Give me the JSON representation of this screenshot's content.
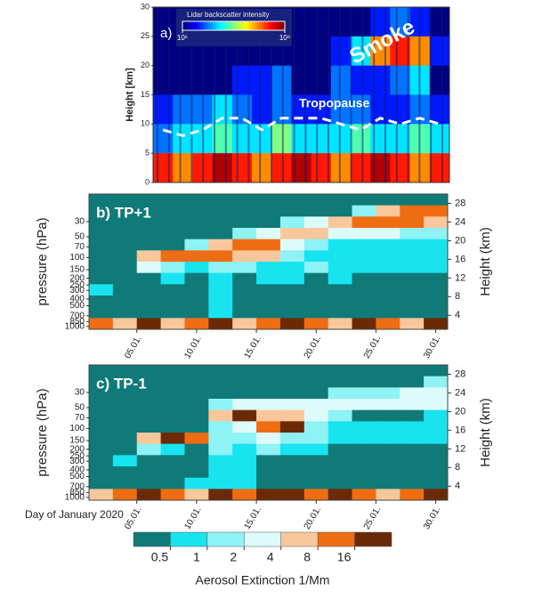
{
  "chart_data": [
    {
      "type": "heatmap",
      "title": "a)",
      "ylabel": "Height [km]",
      "ylim": [
        0,
        30
      ],
      "yticks": [
        0,
        5,
        10,
        15,
        20,
        25,
        30
      ],
      "colorbar_title": "Lidar backscatter intensity",
      "clim_ticks": [
        {
          "value": 1000000.0,
          "label": "10⁶"
        },
        {
          "value": 100000000.0,
          "label": "10⁸"
        }
      ],
      "log_scale": true,
      "annotation": "Smoke",
      "series": [
        {
          "name": "Tropopause",
          "color": "#ffffff",
          "values": [
            9,
            8,
            9,
            11,
            11,
            9,
            11,
            11,
            11,
            10,
            9,
            11,
            10,
            11,
            10
          ]
        }
      ],
      "z": [
        [
          1000000.0,
          1000000.0,
          1000000.0,
          1000000.0,
          1000000.0,
          1000000.0,
          1000000.0,
          1000000.0,
          1000000.0,
          1000000.0,
          1000000.0,
          2000000.0,
          3000000.0,
          2000000.0,
          1000000.0
        ],
        [
          1000000.0,
          1000000.0,
          1000000.0,
          1000000.0,
          1000000.0,
          1000000.0,
          1000000.0,
          1000000.0,
          1000000.0,
          2000000.0,
          5000000.0,
          30000000.0,
          50000000.0,
          30000000.0,
          2000000.0
        ],
        [
          1000000.0,
          1000000.0,
          1000000.0,
          1000000.0,
          2000000.0,
          2000000.0,
          3000000.0,
          1000000.0,
          1000000.0,
          3000000.0,
          2000000.0,
          2000000.0,
          3000000.0,
          5000000.0,
          1000000.0
        ],
        [
          2000000.0,
          3000000.0,
          3000000.0,
          5000000.0,
          3000000.0,
          2000000.0,
          3000000.0,
          2000000.0,
          2000000.0,
          3000000.0,
          3000000.0,
          2000000.0,
          2000000.0,
          3000000.0,
          2000000.0
        ],
        [
          3000000.0,
          5000000.0,
          5000000.0,
          8000000.0,
          5000000.0,
          5000000.0,
          10000000.0,
          5000000.0,
          5000000.0,
          5000000.0,
          8000000.0,
          5000000.0,
          5000000.0,
          8000000.0,
          5000000.0
        ],
        [
          50000000.0,
          30000000.0,
          50000000.0,
          80000000.0,
          50000000.0,
          30000000.0,
          50000000.0,
          80000000.0,
          50000000.0,
          30000000.0,
          50000000.0,
          80000000.0,
          50000000.0,
          30000000.0,
          50000000.0
        ]
      ]
    },
    {
      "type": "heatmap",
      "title": "b) TP+1",
      "ylabel": "pressure (hPa)",
      "y2label": "Height (km)",
      "ylim": [
        1100,
        12
      ],
      "log_scale": true,
      "yticks": [
        30,
        50,
        70,
        100,
        150,
        200,
        250,
        300,
        400,
        500,
        700,
        850,
        1000
      ],
      "y2lim": [
        1,
        30
      ],
      "y2ticks": [
        4,
        8,
        12,
        16,
        20,
        24,
        28
      ],
      "xlim": [
        1,
        31
      ],
      "xticks": [
        {
          "value": 5,
          "label": "05.01."
        },
        {
          "value": 10,
          "label": "10.01."
        },
        {
          "value": 15,
          "label": "15.01."
        },
        {
          "value": 20,
          "label": "20.01."
        },
        {
          "value": 25,
          "label": "25.01."
        },
        {
          "value": 30,
          "label": "30.01."
        }
      ],
      "z": [
        [
          0.3,
          0.3,
          0.3,
          0.3,
          0.3,
          0.3,
          0.3,
          0.3,
          0.3,
          0.3,
          0.3,
          0.3,
          0.3,
          0.3,
          0.3
        ],
        [
          0.3,
          0.3,
          0.3,
          0.3,
          0.3,
          0.3,
          0.3,
          0.3,
          0.3,
          0.3,
          0.3,
          1.5,
          6,
          12,
          12
        ],
        [
          0.3,
          0.3,
          0.3,
          0.3,
          0.3,
          0.3,
          0.3,
          0.3,
          1.5,
          3,
          6,
          12,
          12,
          12,
          6
        ],
        [
          0.3,
          0.3,
          0.3,
          0.3,
          0.3,
          0.3,
          1.5,
          3,
          6,
          6,
          3,
          3,
          3,
          1.5,
          1.5
        ],
        [
          0.3,
          0.3,
          0.3,
          0.3,
          1.5,
          6,
          12,
          12,
          3,
          1.5,
          0.7,
          0.7,
          0.7,
          0.7,
          0.7
        ],
        [
          0.3,
          0.3,
          6,
          12,
          12,
          12,
          6,
          6,
          1.5,
          0.7,
          0.7,
          0.7,
          0.7,
          0.7,
          0.7
        ],
        [
          0.3,
          0.3,
          3,
          1.5,
          0.7,
          1.5,
          1.5,
          0.7,
          0.7,
          1.5,
          0.7,
          0.7,
          0.7,
          0.7,
          0.7
        ],
        [
          0.3,
          0.3,
          0.3,
          0.7,
          0.3,
          0.7,
          0.3,
          0.7,
          0.7,
          0.3,
          0.7,
          0.3,
          0.3,
          0.3,
          0.3
        ],
        [
          0.7,
          0.3,
          0.3,
          0.3,
          0.3,
          0.7,
          0.3,
          0.3,
          0.3,
          0.3,
          0.3,
          0.3,
          0.3,
          0.3,
          0.3
        ],
        [
          0.3,
          0.3,
          0.3,
          0.3,
          0.3,
          0.7,
          0.3,
          0.3,
          0.3,
          0.3,
          0.3,
          0.3,
          0.3,
          0.3,
          0.3
        ],
        [
          0.3,
          0.3,
          0.3,
          0.3,
          0.3,
          0.7,
          0.3,
          0.3,
          0.3,
          0.3,
          0.3,
          0.3,
          0.3,
          0.3,
          0.3
        ],
        [
          12,
          6,
          20,
          6,
          12,
          20,
          6,
          12,
          20,
          12,
          6,
          20,
          12,
          6,
          20
        ]
      ]
    },
    {
      "type": "heatmap",
      "title": "c) TP-1",
      "ylabel": "pressure (hPa)",
      "y2label": "Height (km)",
      "xlabel": "Day of January 2020",
      "ylim": [
        1100,
        12
      ],
      "log_scale": true,
      "yticks": [
        30,
        50,
        70,
        100,
        150,
        200,
        250,
        300,
        400,
        500,
        700,
        850,
        1000
      ],
      "y2lim": [
        1,
        30
      ],
      "y2ticks": [
        4,
        8,
        12,
        16,
        20,
        24,
        28
      ],
      "xlim": [
        1,
        31
      ],
      "xticks": [
        {
          "value": 5,
          "label": "05.01."
        },
        {
          "value": 10,
          "label": "10.01."
        },
        {
          "value": 15,
          "label": "15.01."
        },
        {
          "value": 20,
          "label": "20.01."
        },
        {
          "value": 25,
          "label": "25.01."
        },
        {
          "value": 30,
          "label": "30.01."
        }
      ],
      "z": [
        [
          0.3,
          0.3,
          0.3,
          0.3,
          0.3,
          0.3,
          0.3,
          0.3,
          0.3,
          0.3,
          0.3,
          0.3,
          0.3,
          0.3,
          0.3
        ],
        [
          0.3,
          0.3,
          0.3,
          0.3,
          0.3,
          0.3,
          0.3,
          0.3,
          0.3,
          0.3,
          0.3,
          0.3,
          0.3,
          0.3,
          1.5
        ],
        [
          0.3,
          0.3,
          0.3,
          0.3,
          0.3,
          0.3,
          0.3,
          0.3,
          0.3,
          0.3,
          1.5,
          1.5,
          1.5,
          3,
          3
        ],
        [
          0.3,
          0.3,
          0.3,
          0.3,
          0.3,
          1.5,
          3,
          3,
          3,
          3,
          3,
          3,
          3,
          3,
          3
        ],
        [
          0.3,
          0.3,
          0.3,
          0.3,
          0.3,
          6,
          20,
          6,
          6,
          3,
          1.5,
          0.3,
          0.3,
          0.3,
          0.7
        ],
        [
          0.3,
          0.3,
          0.3,
          0.3,
          0.3,
          1.5,
          3,
          12,
          20,
          1.5,
          0.7,
          0.7,
          0.7,
          0.7,
          0.7
        ],
        [
          0.3,
          0.3,
          6,
          20,
          12,
          1.5,
          1.5,
          3,
          1.5,
          1.5,
          0.7,
          0.7,
          0.7,
          0.7,
          0.7
        ],
        [
          0.3,
          0.3,
          1.5,
          0.7,
          0.3,
          1.5,
          0.7,
          1.5,
          0.7,
          0.7,
          0.3,
          0.3,
          0.3,
          0.3,
          0.3
        ],
        [
          0.3,
          0.7,
          0.3,
          0.3,
          0.3,
          0.7,
          0.7,
          0.3,
          0.3,
          0.3,
          0.3,
          0.3,
          0.3,
          0.3,
          0.3
        ],
        [
          0.3,
          0.3,
          0.3,
          0.3,
          0.3,
          0.7,
          0.7,
          0.3,
          0.3,
          0.3,
          0.3,
          0.3,
          0.3,
          0.3,
          0.3
        ],
        [
          0.3,
          0.3,
          0.3,
          0.3,
          0.7,
          0.7,
          0.7,
          0.3,
          0.3,
          0.3,
          0.3,
          0.3,
          0.3,
          0.3,
          0.3
        ],
        [
          6,
          12,
          20,
          12,
          6,
          20,
          12,
          20,
          20,
          12,
          20,
          12,
          6,
          12,
          20
        ]
      ],
      "colorbar": {
        "label": "Aerosol Extinction 1/Mm",
        "ticks": [
          0.5,
          1,
          2,
          4,
          8,
          16
        ],
        "colors": [
          "#0f7a78",
          "#18e4f0",
          "#8ff2f5",
          "#ddfbfb",
          "#f9c79c",
          "#ef6d12",
          "#6b2a06"
        ]
      }
    }
  ]
}
